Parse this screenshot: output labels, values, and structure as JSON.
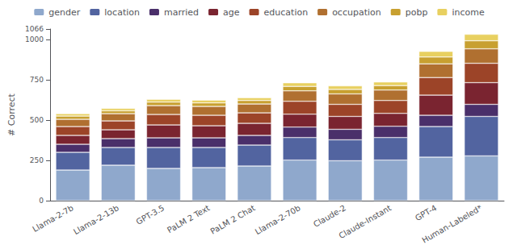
{
  "chart_data": {
    "type": "bar",
    "stacked": true,
    "categories": [
      "Llama-2-7b",
      "Llama-2-13b",
      "GPT-3.5",
      "PaLM 2 Text",
      "PaLM 2 Chat",
      "Llama-2-70b",
      "Claude-2",
      "Claude-Instant",
      "GPT-4",
      "Human-Labeled*"
    ],
    "series": [
      {
        "name": "gender",
        "color": "#8fa8cc",
        "values": [
          190,
          220,
          200,
          205,
          215,
          252,
          248,
          252,
          270,
          278
        ]
      },
      {
        "name": "location",
        "color": "#5264a0",
        "values": [
          110,
          110,
          130,
          125,
          130,
          140,
          130,
          140,
          190,
          245
        ]
      },
      {
        "name": "married",
        "color": "#4a2f6a",
        "values": [
          50,
          55,
          60,
          60,
          60,
          65,
          65,
          70,
          70,
          75
        ]
      },
      {
        "name": "age",
        "color": "#7a2430",
        "values": [
          55,
          55,
          80,
          75,
          75,
          80,
          80,
          80,
          125,
          135
        ]
      },
      {
        "name": "education",
        "color": "#9c4428",
        "values": [
          55,
          55,
          65,
          65,
          65,
          80,
          75,
          80,
          110,
          120
        ]
      },
      {
        "name": "occupation",
        "color": "#b07030",
        "values": [
          45,
          45,
          55,
          55,
          55,
          65,
          65,
          65,
          85,
          90
        ]
      },
      {
        "name": "pobp",
        "color": "#c8a030",
        "values": [
          20,
          18,
          22,
          22,
          22,
          28,
          28,
          28,
          42,
          50
        ]
      },
      {
        "name": "income",
        "color": "#e8d060",
        "values": [
          15,
          15,
          17,
          17,
          17,
          22,
          22,
          22,
          35,
          40
        ]
      }
    ],
    "ylabel": "# Correct",
    "ylim": [
      0,
      1066
    ],
    "yticks": [
      0,
      250,
      500,
      750,
      1000,
      1066
    ],
    "grid": false,
    "legend": "top"
  }
}
